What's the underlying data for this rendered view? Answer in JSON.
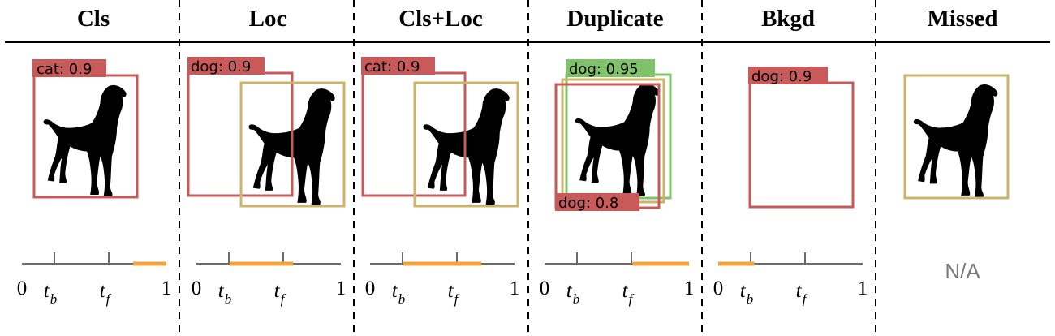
{
  "colors": {
    "pred": "#c85a5a",
    "gt": "#cdb46a",
    "dup": "#7fc26a",
    "range": "#f2a43c",
    "axis": "#6b6b6b",
    "na": "#7a7a7a"
  },
  "icons": {
    "dog": "dog-silhouette-icon"
  },
  "columns": [
    {
      "title": "Cls",
      "labels": {
        "pred": "cat: 0.9"
      },
      "range": [
        0.77,
        1.0
      ]
    },
    {
      "title": "Loc",
      "labels": {
        "pred": "dog: 0.9"
      },
      "range": [
        0.23,
        0.67
      ]
    },
    {
      "title": "Cls+Loc",
      "labels": {
        "pred": "cat: 0.9"
      },
      "range": [
        0.23,
        0.77
      ]
    },
    {
      "title": "Duplicate",
      "labels": {
        "dup": "dog: 0.95",
        "pred": "dog: 0.8"
      },
      "range": [
        0.61,
        1.0
      ]
    },
    {
      "title": "Bkgd",
      "labels": {
        "pred": "dog: 0.9"
      },
      "range": [
        0.0,
        0.25
      ]
    },
    {
      "title": "Missed",
      "labels": {},
      "na": "N/A"
    }
  ],
  "axis_labels": {
    "zero": "0",
    "one": "1",
    "tb": "t",
    "tb_sub": "b",
    "tf": "t",
    "tf_sub": "f"
  }
}
